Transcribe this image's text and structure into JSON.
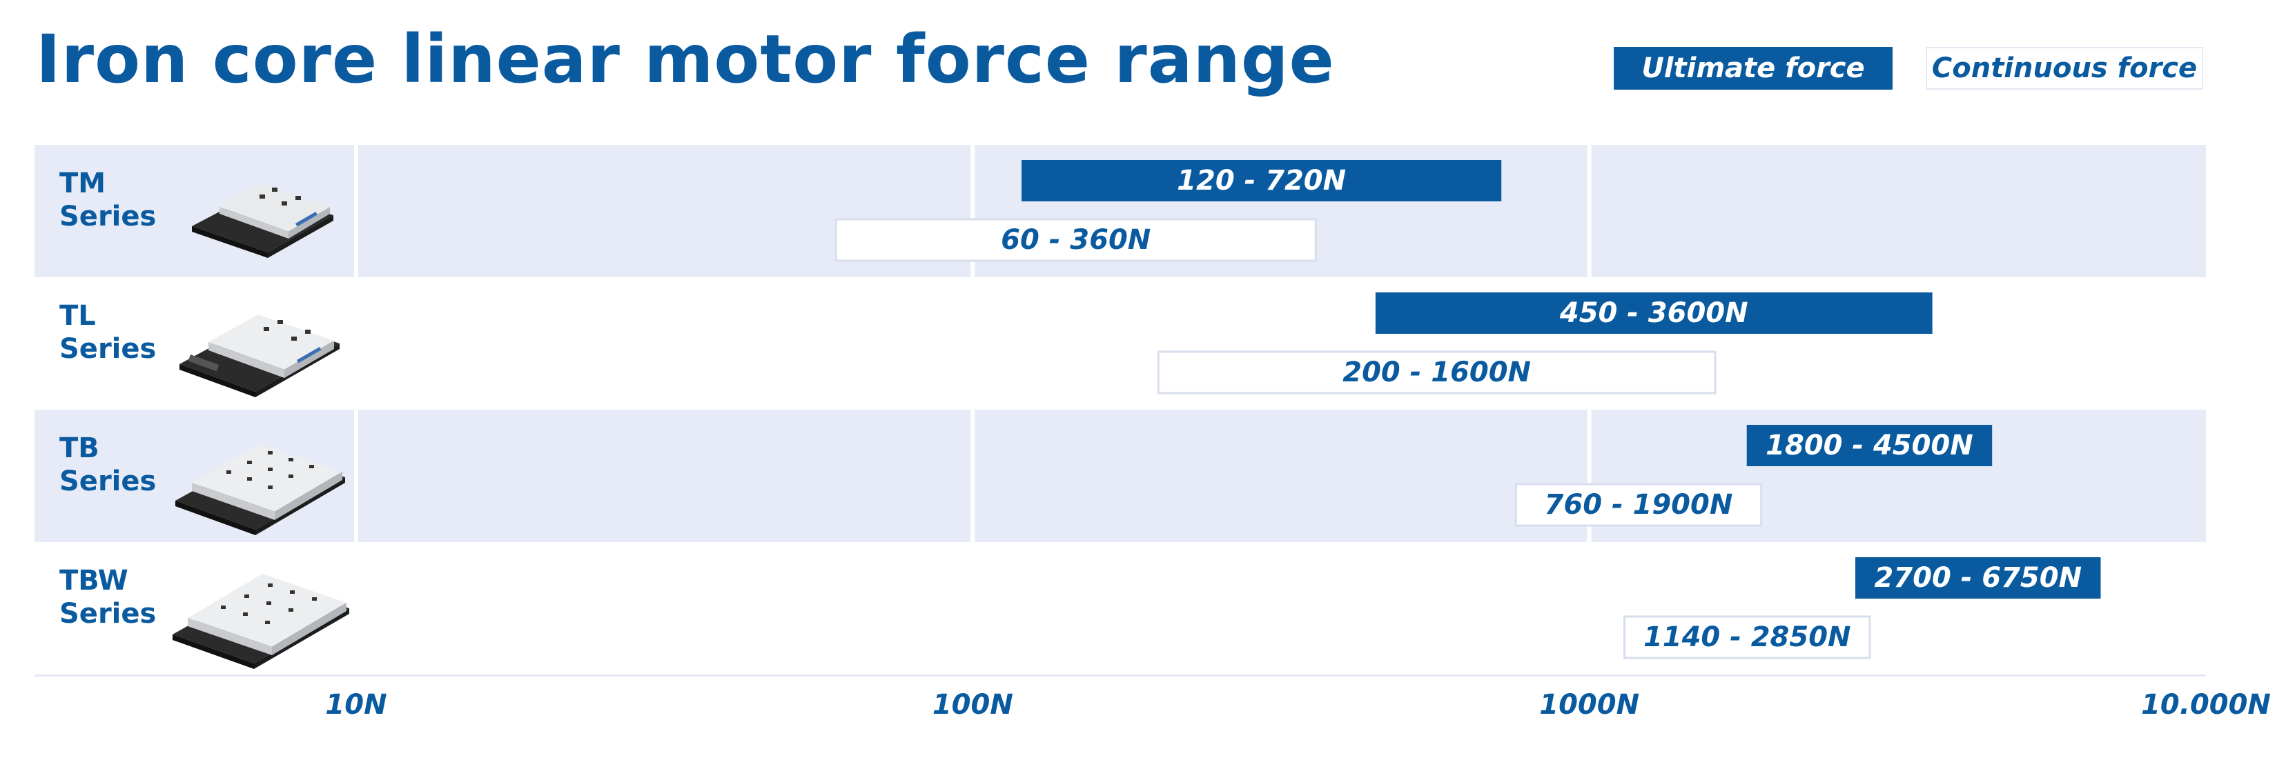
{
  "title": "Iron core linear motor force range",
  "legend": {
    "ultimate": "Ultimate force",
    "continuous": "Continuous force"
  },
  "colors": {
    "primary": "#0a5aa0",
    "row_band": "#e6ebf7",
    "white": "#ffffff"
  },
  "chart_data": {
    "type": "bar",
    "orientation": "horizontal-range",
    "x_scale": "log",
    "xlim": [
      10,
      10000
    ],
    "x_ticks": [
      10,
      100,
      1000,
      10000
    ],
    "x_tick_labels": [
      "10N",
      "100N",
      "1000N",
      "10.000N"
    ],
    "categories": [
      "TM Series",
      "TL Series",
      "TB Series",
      "TBW Series"
    ],
    "series": [
      {
        "name": "Ultimate force",
        "ranges": [
          [
            120,
            720
          ],
          [
            450,
            3600
          ],
          [
            1800,
            4500
          ],
          [
            2700,
            6750
          ]
        ],
        "labels": [
          "120 - 720N",
          "450 - 3600N",
          "1800 - 4500N",
          "2700 - 6750N"
        ]
      },
      {
        "name": "Continuous force",
        "ranges": [
          [
            60,
            360
          ],
          [
            200,
            1600
          ],
          [
            760,
            1900
          ],
          [
            1140,
            2850
          ]
        ],
        "labels": [
          "60 - 360N",
          "200 - 1600N",
          "760 - 1900N",
          "1140 - 2850N"
        ]
      }
    ]
  },
  "rows": [
    {
      "line1": "TM",
      "line2": "Series",
      "icon": "tm-motor-icon"
    },
    {
      "line1": "TL",
      "line2": "Series",
      "icon": "tl-motor-icon"
    },
    {
      "line1": "TB",
      "line2": "Series",
      "icon": "tb-motor-icon"
    },
    {
      "line1": "TBW",
      "line2": "Series",
      "icon": "tbw-motor-icon"
    }
  ]
}
